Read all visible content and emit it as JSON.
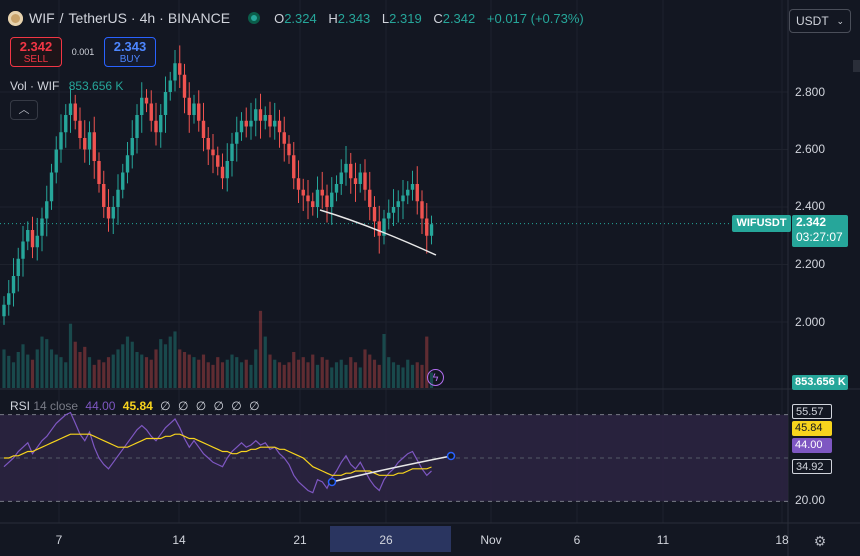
{
  "header": {
    "symbol": "WIF",
    "separator": "/",
    "quote": "TetherUS",
    "interval": "4h",
    "exchange": "BINANCE",
    "open_key": "O",
    "open": "2.324",
    "high_key": "H",
    "high": "2.343",
    "low_key": "L",
    "low": "2.319",
    "close_key": "C",
    "close": "2.342",
    "change": "+0.017 (+0.73%)"
  },
  "trade": {
    "sell_price": "2.342",
    "sell_label": "SELL",
    "spread": "0.001",
    "buy_price": "2.343",
    "buy_label": "BUY"
  },
  "volume": {
    "label": "Vol · WIF",
    "value": "853.656 K",
    "tag": "853.656 K"
  },
  "currency_select": {
    "value": "USDT"
  },
  "price_axis": {
    "ticks": [
      "2.800",
      "2.600",
      "2.400",
      "2.200",
      "2.000"
    ],
    "tick_values": [
      2.8,
      2.6,
      2.4,
      2.2,
      2.0
    ]
  },
  "price_tag": {
    "symbol": "WIFUSDT",
    "price": "2.342",
    "countdown": "03:27:07"
  },
  "rsi": {
    "label": "RSI",
    "params": "14 close",
    "value_faint": "44.00",
    "ma_value": "45.84",
    "placeholders": "∅ ∅ ∅ ∅ ∅ ∅",
    "axis_tags": {
      "upper": "55.57",
      "ma": "45.84",
      "rsi": "44.00",
      "lower": "34.92"
    },
    "axis_tick": "20.00",
    "colors": {
      "rsi": "#7e57c2",
      "ma": "#f7d41d",
      "band": "#2b2440"
    }
  },
  "time_axis": {
    "labels": [
      "7",
      "14",
      "21",
      "26",
      "Nov",
      "6",
      "11",
      "18"
    ]
  },
  "icons": {
    "collapse": "chevron-up-icon",
    "alert": "flash-icon",
    "settings": "gear-icon",
    "live": "live-dot-icon"
  },
  "colors": {
    "up": "#26a69a",
    "down": "#ef5350",
    "background": "#131722",
    "grid": "#1f2430"
  },
  "chart_data": {
    "type": "candlestick",
    "price_range": [
      1.9,
      2.95
    ],
    "rsi_range": [
      20,
      80
    ],
    "closes": [
      2.06,
      2.1,
      2.16,
      2.22,
      2.28,
      2.32,
      2.26,
      2.3,
      2.36,
      2.42,
      2.52,
      2.6,
      2.66,
      2.72,
      2.76,
      2.7,
      2.64,
      2.6,
      2.66,
      2.56,
      2.48,
      2.4,
      2.36,
      2.4,
      2.46,
      2.52,
      2.58,
      2.64,
      2.72,
      2.78,
      2.76,
      2.7,
      2.66,
      2.72,
      2.8,
      2.84,
      2.9,
      2.86,
      2.78,
      2.72,
      2.76,
      2.7,
      2.64,
      2.6,
      2.58,
      2.54,
      2.5,
      2.56,
      2.62,
      2.66,
      2.7,
      2.68,
      2.7,
      2.74,
      2.7,
      2.72,
      2.68,
      2.7,
      2.66,
      2.62,
      2.58,
      2.5,
      2.46,
      2.44,
      2.42,
      2.4,
      2.46,
      2.44,
      2.4,
      2.45,
      2.48,
      2.52,
      2.55,
      2.5,
      2.48,
      2.52,
      2.46,
      2.4,
      2.35,
      2.3,
      2.36,
      2.38,
      2.4,
      2.42,
      2.44,
      2.46,
      2.48,
      2.42,
      2.36,
      2.3,
      2.34
    ],
    "rsi_values": [
      46,
      48,
      50,
      53,
      55,
      57,
      52,
      55,
      58,
      60,
      63,
      66,
      68,
      70,
      71,
      66,
      61,
      58,
      62,
      55,
      50,
      47,
      45,
      48,
      51,
      54,
      57,
      60,
      63,
      65,
      63,
      60,
      58,
      61,
      64,
      66,
      68,
      64,
      59,
      55,
      58,
      55,
      52,
      50,
      48,
      47,
      46,
      50,
      53,
      55,
      57,
      55,
      56,
      58,
      56,
      57,
      54,
      55,
      52,
      50,
      47,
      42,
      39,
      37,
      35,
      34,
      40,
      39,
      36,
      41,
      44,
      48,
      51,
      47,
      45,
      48,
      44,
      40,
      37,
      35,
      40,
      43,
      45,
      48,
      50,
      52,
      53,
      49,
      45,
      42,
      44
    ],
    "ma_values": [
      50,
      50,
      51,
      51,
      52,
      53,
      53,
      54,
      55,
      56,
      57,
      58,
      59,
      60,
      61,
      61,
      61,
      61,
      61,
      60,
      59,
      58,
      57,
      56,
      55,
      55,
      55,
      56,
      57,
      58,
      59,
      59,
      59,
      59,
      60,
      60,
      61,
      61,
      60,
      59,
      59,
      58,
      57,
      56,
      55,
      54,
      53,
      53,
      52,
      52,
      53,
      53,
      54,
      54,
      55,
      55,
      55,
      55,
      54,
      54,
      53,
      52,
      51,
      50,
      48,
      46,
      45,
      44,
      43,
      42,
      42,
      42,
      43,
      43,
      44,
      44,
      44,
      44,
      43,
      42,
      42,
      42,
      42,
      43,
      43,
      44,
      45,
      45,
      45,
      45,
      45.84
    ],
    "volume_values": [
      30,
      25,
      20,
      28,
      34,
      26,
      22,
      30,
      40,
      38,
      30,
      26,
      24,
      20,
      50,
      36,
      28,
      32,
      24,
      18,
      22,
      20,
      24,
      26,
      30,
      34,
      40,
      36,
      28,
      26,
      24,
      22,
      30,
      38,
      34,
      40,
      44,
      30,
      28,
      26,
      24,
      22,
      26,
      20,
      18,
      24,
      20,
      22,
      26,
      24,
      20,
      22,
      18,
      30,
      60,
      40,
      26,
      22,
      20,
      18,
      20,
      28,
      22,
      24,
      20,
      26,
      18,
      24,
      22,
      16,
      20,
      22,
      18,
      24,
      20,
      16,
      30,
      26,
      22,
      18,
      42,
      24,
      20,
      18,
      16,
      22,
      18,
      20,
      18,
      40,
      12
    ]
  }
}
